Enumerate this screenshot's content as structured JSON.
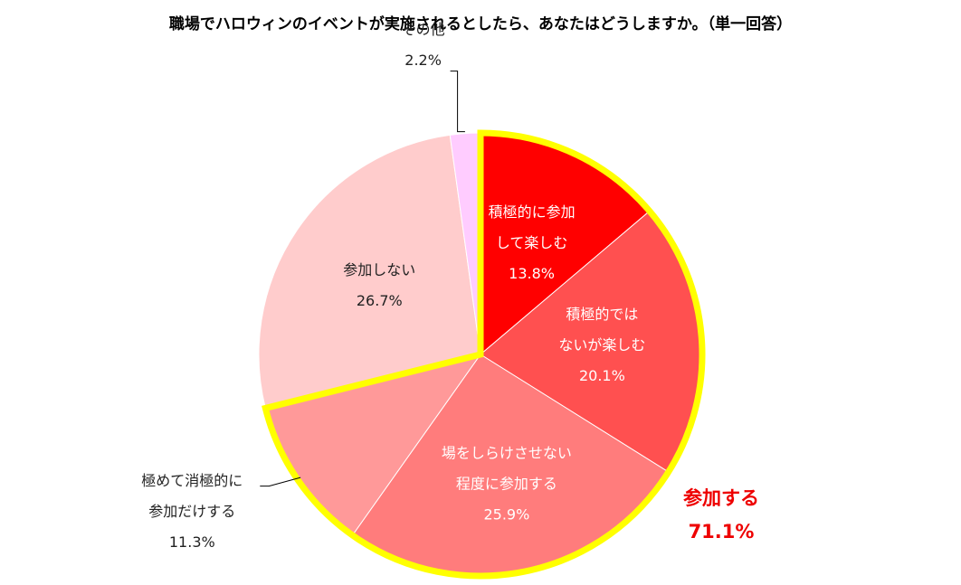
{
  "chart_data": {
    "type": "pie",
    "title": "職場でハロウィンのイベントが実施されるとしたら、あなたはどうしますか。（単一回答）",
    "slices": [
      {
        "label": [
          "積極的に参加",
          "して楽しむ"
        ],
        "value": 13.8,
        "value_label": "13.8%",
        "color": "#ff0000"
      },
      {
        "label": [
          "積極的では",
          "ないが楽しむ"
        ],
        "value": 20.1,
        "value_label": "20.1%",
        "color": "#ff5050"
      },
      {
        "label": [
          "場をしらけさせない",
          "程度に参加する"
        ],
        "value": 25.9,
        "value_label": "25.9%",
        "color": "#ff7c7c"
      },
      {
        "label": [
          "極めて消極的に",
          "参加だけする"
        ],
        "value": 11.3,
        "value_label": "11.3%",
        "color": "#ff9999"
      },
      {
        "label": [
          "参加しない"
        ],
        "value": 26.7,
        "value_label": "26.7%",
        "color": "#ffcccc"
      },
      {
        "label": [
          "その他"
        ],
        "value": 2.2,
        "value_label": "2.2%",
        "color": "#ffccff"
      }
    ],
    "highlight_group": {
      "label": "参加する",
      "value_label": "71.1%",
      "slice_indices": [
        0,
        1,
        2,
        3
      ],
      "outline_color": "#ffff00",
      "label_color": "#ee0000"
    }
  }
}
